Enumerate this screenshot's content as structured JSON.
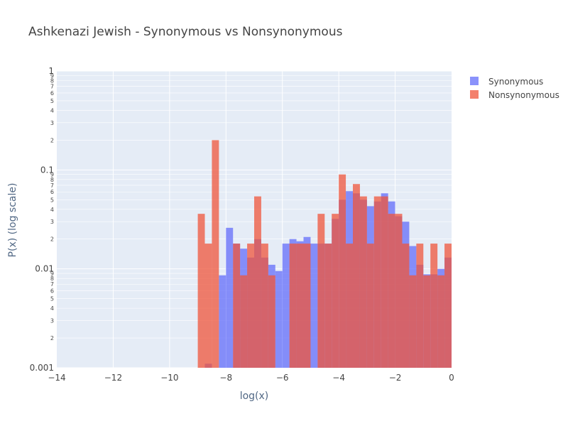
{
  "chart_data": {
    "type": "bar",
    "title": "Ashkenazi Jewish - Synonymous vs Nonsynonymous",
    "xlabel": "log(x)",
    "ylabel": "P(x) (log scale)",
    "xlim": [
      -14,
      0
    ],
    "ylim": [
      0.001,
      1
    ],
    "y_scale": "log",
    "barmode": "overlay",
    "bin_width": 0.25,
    "x_ticks": [
      "−14",
      "−12",
      "−10",
      "−8",
      "−6",
      "−4",
      "−2",
      "0"
    ],
    "y_ticks": [
      "0.001",
      "0.01",
      "0.1",
      "1"
    ],
    "y_minor_labels": [
      "2",
      "3",
      "4",
      "5",
      "6",
      "7",
      "8",
      "9"
    ],
    "legend_position": "top-right",
    "series": [
      {
        "name": "Synonymous",
        "color": "#636efa",
        "opacity": 0.75,
        "bins": [
          [
            -8.75,
            0.0011
          ],
          [
            -8.25,
            0.0086
          ],
          [
            -8.0,
            0.026
          ],
          [
            -7.75,
            0.018
          ],
          [
            -7.5,
            0.016
          ],
          [
            -7.25,
            0.013
          ],
          [
            -7.0,
            0.02
          ],
          [
            -6.75,
            0.013
          ],
          [
            -6.5,
            0.011
          ],
          [
            -6.25,
            0.0095
          ],
          [
            -6.0,
            0.018
          ],
          [
            -5.75,
            0.02
          ],
          [
            -5.5,
            0.019
          ],
          [
            -5.25,
            0.021
          ],
          [
            -5.0,
            0.018
          ],
          [
            -4.75,
            0.018
          ],
          [
            -4.5,
            0.018
          ],
          [
            -4.25,
            0.032
          ],
          [
            -4.0,
            0.05
          ],
          [
            -3.75,
            0.061
          ],
          [
            -3.5,
            0.058
          ],
          [
            -3.25,
            0.05
          ],
          [
            -3.0,
            0.043
          ],
          [
            -2.75,
            0.048
          ],
          [
            -2.5,
            0.058
          ],
          [
            -2.25,
            0.048
          ],
          [
            -2.0,
            0.034
          ],
          [
            -1.75,
            0.03
          ],
          [
            -1.5,
            0.017
          ],
          [
            -1.25,
            0.011
          ],
          [
            -1.0,
            0.0088
          ],
          [
            -0.75,
            0.0088
          ],
          [
            -0.5,
            0.01
          ],
          [
            -0.25,
            0.013
          ],
          [
            0.0,
            0.012
          ]
        ]
      },
      {
        "name": "Nonsynonymous",
        "color": "#ef553b",
        "opacity": 0.75,
        "bins": [
          [
            -9.0,
            0.036
          ],
          [
            -8.75,
            0.018
          ],
          [
            -8.5,
            0.2
          ],
          [
            -7.75,
            0.018
          ],
          [
            -7.5,
            0.0086
          ],
          [
            -7.25,
            0.018
          ],
          [
            -7.0,
            0.054
          ],
          [
            -6.75,
            0.018
          ],
          [
            -6.5,
            0.0086
          ],
          [
            -5.75,
            0.018
          ],
          [
            -5.5,
            0.018
          ],
          [
            -5.25,
            0.018
          ],
          [
            -4.75,
            0.036
          ],
          [
            -4.5,
            0.018
          ],
          [
            -4.25,
            0.036
          ],
          [
            -4.0,
            0.09
          ],
          [
            -3.75,
            0.018
          ],
          [
            -3.5,
            0.072
          ],
          [
            -3.25,
            0.054
          ],
          [
            -3.0,
            0.018
          ],
          [
            -2.75,
            0.054
          ],
          [
            -2.5,
            0.054
          ],
          [
            -2.25,
            0.036
          ],
          [
            -2.0,
            0.036
          ],
          [
            -1.75,
            0.018
          ],
          [
            -1.5,
            0.0086
          ],
          [
            -1.25,
            0.018
          ],
          [
            -1.0,
            0.0086
          ],
          [
            -0.75,
            0.018
          ],
          [
            -0.5,
            0.0086
          ],
          [
            -0.25,
            0.018
          ]
        ]
      }
    ]
  }
}
